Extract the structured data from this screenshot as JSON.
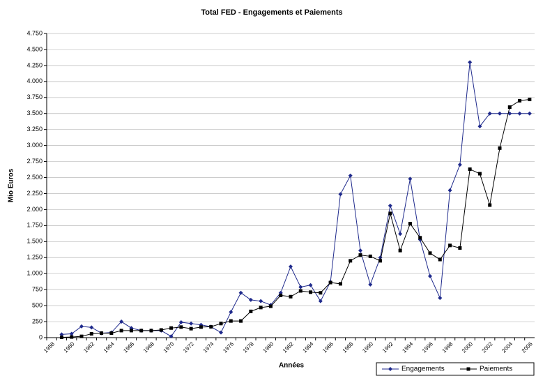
{
  "chart_data": {
    "type": "line",
    "title": "Total FED - Engagements et Paiements",
    "x_label": "Années",
    "y_label": "Mio Euros",
    "categories": [
      "1958",
      null,
      "1960",
      null,
      "1962",
      null,
      "1964",
      null,
      "1966",
      null,
      "1968",
      null,
      "1970",
      null,
      "1972",
      null,
      "1974",
      null,
      "1976",
      null,
      "1978",
      null,
      "1980",
      null,
      "1982",
      null,
      "1984",
      null,
      "1986",
      null,
      "1988",
      null,
      "1990",
      null,
      "1992",
      null,
      "1994",
      null,
      "1996",
      null,
      "1998",
      null,
      "2000",
      null,
      "2002",
      null,
      "2004",
      null,
      "2006"
    ],
    "series": [
      {
        "name": "Engagements",
        "color": "#1f2a8c",
        "marker": "diamond",
        "values": [
          null,
          50,
          60,
          175,
          160,
          70,
          80,
          250,
          150,
          110,
          110,
          110,
          20,
          240,
          220,
          200,
          170,
          80,
          400,
          700,
          590,
          570,
          510,
          700,
          1110,
          790,
          820,
          570,
          870,
          2240,
          2530,
          1360,
          830,
          1250,
          2060,
          1620,
          2480,
          1530,
          960,
          620,
          2300,
          2700,
          4300,
          3300,
          3500,
          3500,
          3500,
          3500,
          3500
        ]
      },
      {
        "name": "Paiements",
        "color": "#000000",
        "marker": "square",
        "values": [
          null,
          5,
          10,
          20,
          60,
          70,
          70,
          110,
          110,
          110,
          110,
          120,
          150,
          165,
          140,
          165,
          170,
          220,
          260,
          260,
          410,
          470,
          490,
          660,
          640,
          730,
          710,
          700,
          860,
          840,
          1200,
          1290,
          1270,
          1200,
          1940,
          1360,
          1780,
          1560,
          1320,
          1220,
          1440,
          1400,
          2630,
          2560,
          2070,
          2960,
          3600,
          3700,
          3720
        ]
      }
    ],
    "ylim": [
      0,
      4750
    ],
    "yticks": [
      0,
      250,
      500,
      750,
      {
        "value": 1000,
        "label": "1.000"
      },
      {
        "value": 1250,
        "label": "1.250"
      },
      {
        "value": 1500,
        "label": "1.500"
      },
      {
        "value": 1750,
        "label": "1.750"
      },
      {
        "value": 2000,
        "label": "2.000"
      },
      {
        "value": 2250,
        "label": "2.250"
      },
      {
        "value": 2500,
        "label": "2.500"
      },
      {
        "value": 2750,
        "label": "2.750"
      },
      {
        "value": 3000,
        "label": "3.000"
      },
      {
        "value": 3250,
        "label": "3.250"
      },
      {
        "value": 3500,
        "label": "3.500"
      },
      {
        "value": 3750,
        "label": "3.750"
      },
      {
        "value": 4000,
        "label": "4.000"
      },
      {
        "value": 4250,
        "label": "4.250"
      },
      {
        "value": 4500,
        "label": "4.500"
      },
      {
        "value": 4750,
        "label": "4.750"
      }
    ],
    "grid": true,
    "legend": "bottom-right"
  }
}
